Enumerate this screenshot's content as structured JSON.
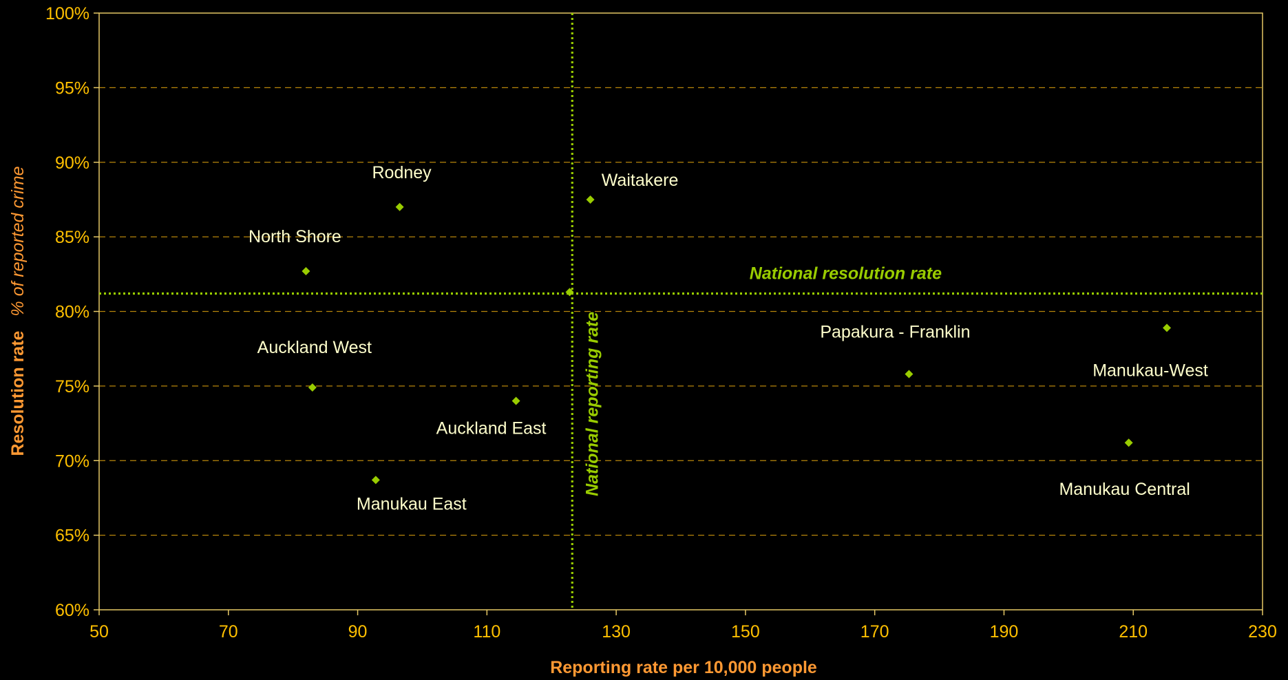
{
  "chart_data": {
    "type": "scatter",
    "title": "",
    "xlabel": "Reporting rate per 10,000 people",
    "ylabel": "Resolution rate",
    "ylabel_suffix": "% of reported crime",
    "xlim": [
      50,
      230
    ],
    "ylim": [
      60,
      100
    ],
    "x_ticks": [
      "50",
      "70",
      "90",
      "110",
      "130",
      "150",
      "170",
      "190",
      "210",
      "230"
    ],
    "y_ticks": [
      "60%",
      "65%",
      "70%",
      "75%",
      "80%",
      "85%",
      "90%",
      "95%",
      "100%"
    ],
    "grid": "horizontal dashed",
    "points": [
      {
        "label": "Rodney",
        "x": 96.5,
        "y": 87.0
      },
      {
        "label": "Waitakere",
        "x": 126.0,
        "y": 87.5
      },
      {
        "label": "North Shore",
        "x": 82.0,
        "y": 82.7
      },
      {
        "label": "Auckland West",
        "x": 83.0,
        "y": 74.9
      },
      {
        "label": "Auckland East",
        "x": 114.5,
        "y": 74.0
      },
      {
        "label": "Manukau East",
        "x": 92.8,
        "y": 68.7
      },
      {
        "label": "Papakura - Franklin",
        "x": 175.3,
        "y": 75.8
      },
      {
        "label": "Manukau-West",
        "x": 215.2,
        "y": 78.9
      },
      {
        "label": "Manukau Central",
        "x": 209.3,
        "y": 71.2
      },
      {
        "label": "",
        "x": 122.8,
        "y": 81.3
      }
    ],
    "reference_lines": [
      {
        "orientation": "horizontal",
        "value": 81.2,
        "label": "National resolution rate"
      },
      {
        "orientation": "vertical",
        "value": 123.2,
        "label": "National reporting rate"
      }
    ],
    "colors": {
      "background": "#000000",
      "axis_text": "#FFC000",
      "axis_title": "#FF9933",
      "point": "#99CC00",
      "reference": "#99CC00",
      "point_label": "#FFFFCC",
      "grid": "#B8860B",
      "axis_line": "#E6C866"
    }
  }
}
